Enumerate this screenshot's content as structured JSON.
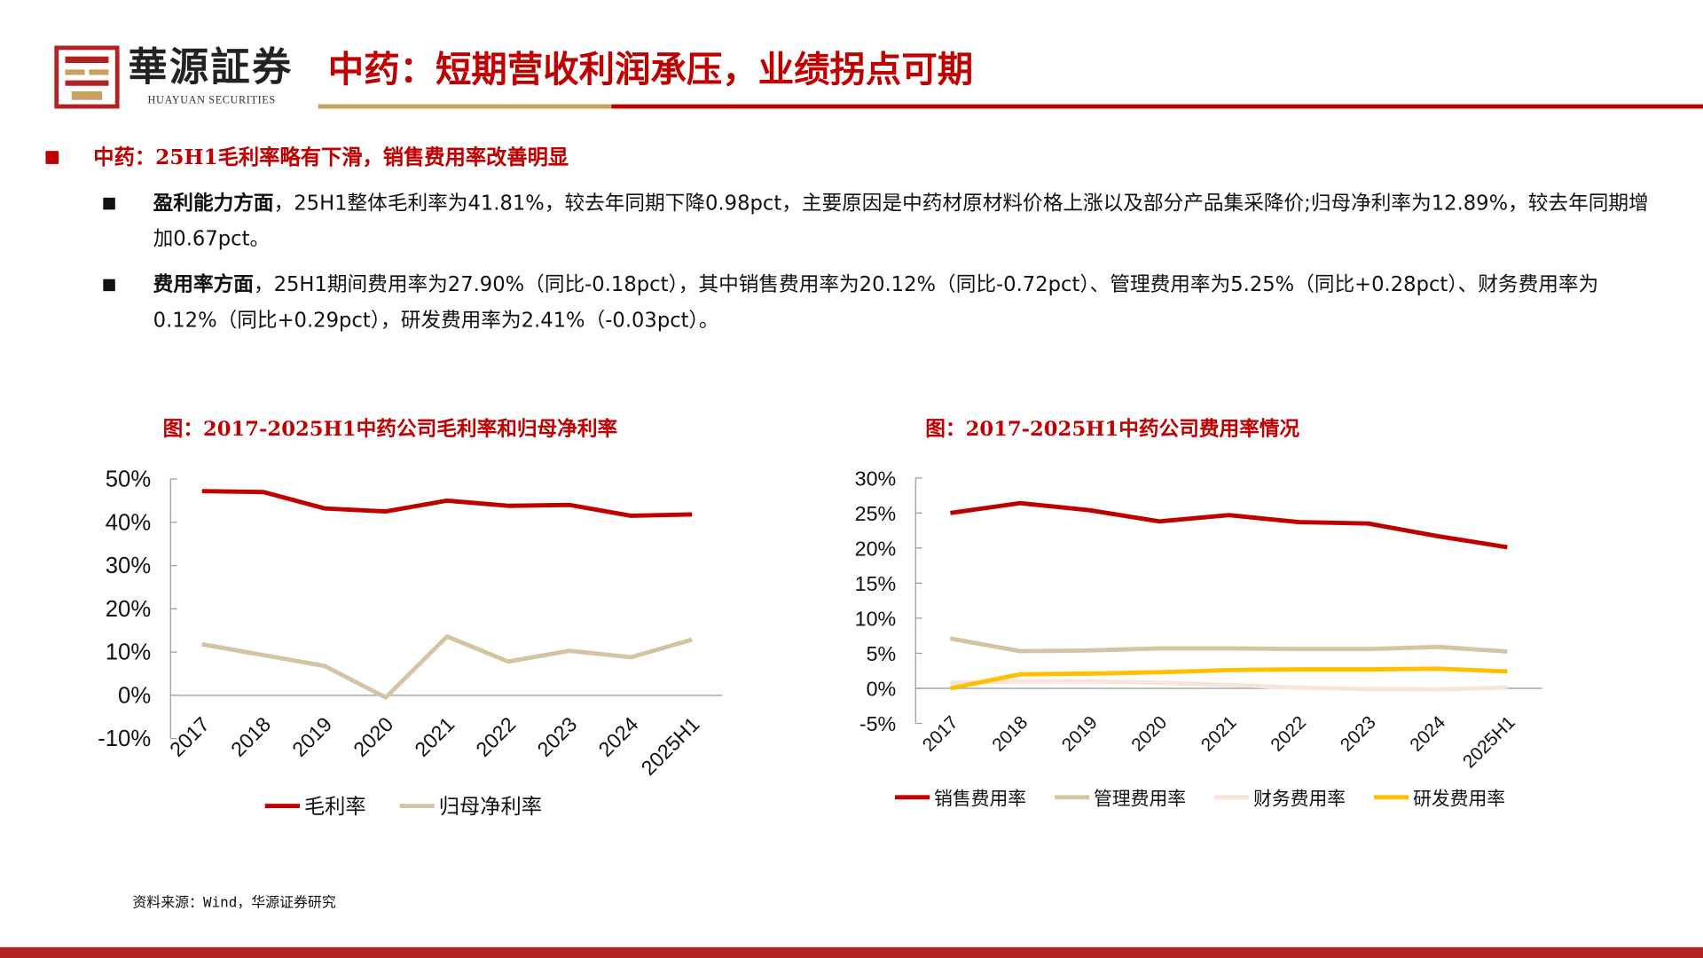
{
  "header": {
    "brand_cn": "華源証券",
    "brand_en": "HUAYUAN SECURITIES",
    "title": "中药：短期营收利润承压，业绩拐点可期"
  },
  "section": {
    "title": "中药：25H1毛利率略有下滑，销售费用率改善明显"
  },
  "paragraphs": [
    {
      "bold": "盈利能力方面",
      "text": "，25H1整体毛利率为41.81%，较去年同期下降0.98pct，主要原因是中药材原材料价格上涨以及部分产品集采降价;归母净利率为12.89%，较去年同期增加0.67pct。"
    },
    {
      "bold": "费用率方面",
      "text": "，25H1期间费用率为27.90%（同比-0.18pct），其中销售费用率为20.12%（同比-0.72pct）、管理费用率为5.25%（同比+0.28pct）、财务费用率为0.12%（同比+0.29pct），研发费用率为2.41%（-0.03pct）。"
    }
  ],
  "source": "资料来源：Wind，华源证券研究",
  "colors": {
    "brand_red": "#c00000",
    "gold": "#c8a060"
  },
  "chart_data": [
    {
      "type": "line",
      "title": "图：2017-2025H1中药公司毛利率和归母净利率",
      "categories": [
        "2017",
        "2018",
        "2019",
        "2020",
        "2021",
        "2022",
        "2023",
        "2024",
        "2025H1"
      ],
      "ylim": [
        -10,
        50
      ],
      "yticks": [
        "-10%",
        "0%",
        "10%",
        "20%",
        "30%",
        "40%",
        "50%"
      ],
      "yticks_values": [
        -10,
        0,
        10,
        20,
        30,
        40,
        50
      ],
      "legend": "bottom",
      "series": [
        {
          "name": "毛利率",
          "color": "#c00000",
          "values": [
            47.2,
            47.0,
            43.2,
            42.5,
            45.0,
            43.8,
            44.0,
            41.5,
            41.81
          ]
        },
        {
          "name": "归母净利率",
          "color": "#d5c4a1",
          "values": [
            11.8,
            9.3,
            6.8,
            -0.5,
            13.6,
            7.8,
            10.3,
            8.8,
            12.89
          ]
        }
      ]
    },
    {
      "type": "line",
      "title": "图：2017-2025H1中药公司费用率情况",
      "categories": [
        "2017",
        "2018",
        "2019",
        "2020",
        "2021",
        "2022",
        "2023",
        "2024",
        "2025H1"
      ],
      "ylim": [
        -5,
        30
      ],
      "yticks": [
        "-5%",
        "0%",
        "5%",
        "10%",
        "15%",
        "20%",
        "25%",
        "30%"
      ],
      "yticks_values": [
        -5,
        0,
        5,
        10,
        15,
        20,
        25,
        30
      ],
      "legend": "bottom",
      "series": [
        {
          "name": "销售费用率",
          "color": "#c00000",
          "values": [
            25.0,
            26.4,
            25.4,
            23.8,
            24.7,
            23.7,
            23.5,
            21.7,
            20.12
          ]
        },
        {
          "name": "管理费用率",
          "color": "#d5c4a1",
          "values": [
            7.1,
            5.3,
            5.4,
            5.7,
            5.7,
            5.6,
            5.6,
            5.9,
            5.25
          ]
        },
        {
          "name": "财务费用率",
          "color": "#f8e4dc",
          "values": [
            0.8,
            1.0,
            1.0,
            0.8,
            0.5,
            0.1,
            -0.1,
            -0.17,
            0.12
          ]
        },
        {
          "name": "研发费用率",
          "color": "#ffc000",
          "values": [
            0.0,
            2.0,
            2.1,
            2.3,
            2.6,
            2.7,
            2.7,
            2.8,
            2.41
          ]
        }
      ]
    }
  ]
}
